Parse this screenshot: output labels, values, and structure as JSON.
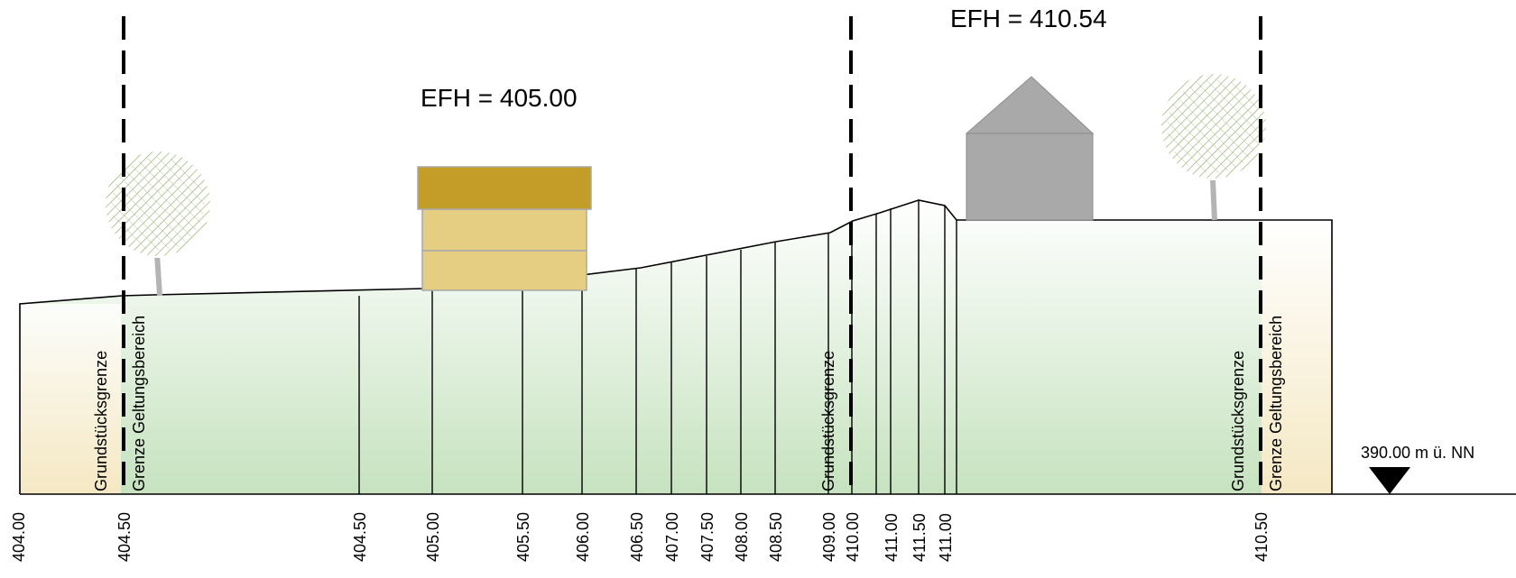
{
  "annotations": {
    "efh_left": "EFH = 405.00",
    "efh_right": "EFH = 410.54",
    "datum": "390.00 m ü. NN"
  },
  "boundary_labels": {
    "grundstuecksgrenze": "Grundstücksgrenze",
    "geltungsbereich": "Grenze Geltungsbereich"
  },
  "elevation_ticks": [
    "404.00",
    "404.50",
    "404.50",
    "405.00",
    "405.50",
    "406.00",
    "406.50",
    "407.00",
    "407.50",
    "408.00",
    "408.50",
    "409.00",
    "410.00",
    "411.00",
    "411.50",
    "411.00",
    "410.50"
  ],
  "colors": {
    "ground_top": "#ffffff",
    "ground_bottom": "#c6e2bf",
    "edge_fill": "#fde9c4",
    "house_left_roof": "#c39d27",
    "house_left_wall": "#e5ce82",
    "house_right": "#a9a9a9",
    "tree_crown": "#7f9a4c",
    "tree_trunk": "#b4b4b4"
  }
}
